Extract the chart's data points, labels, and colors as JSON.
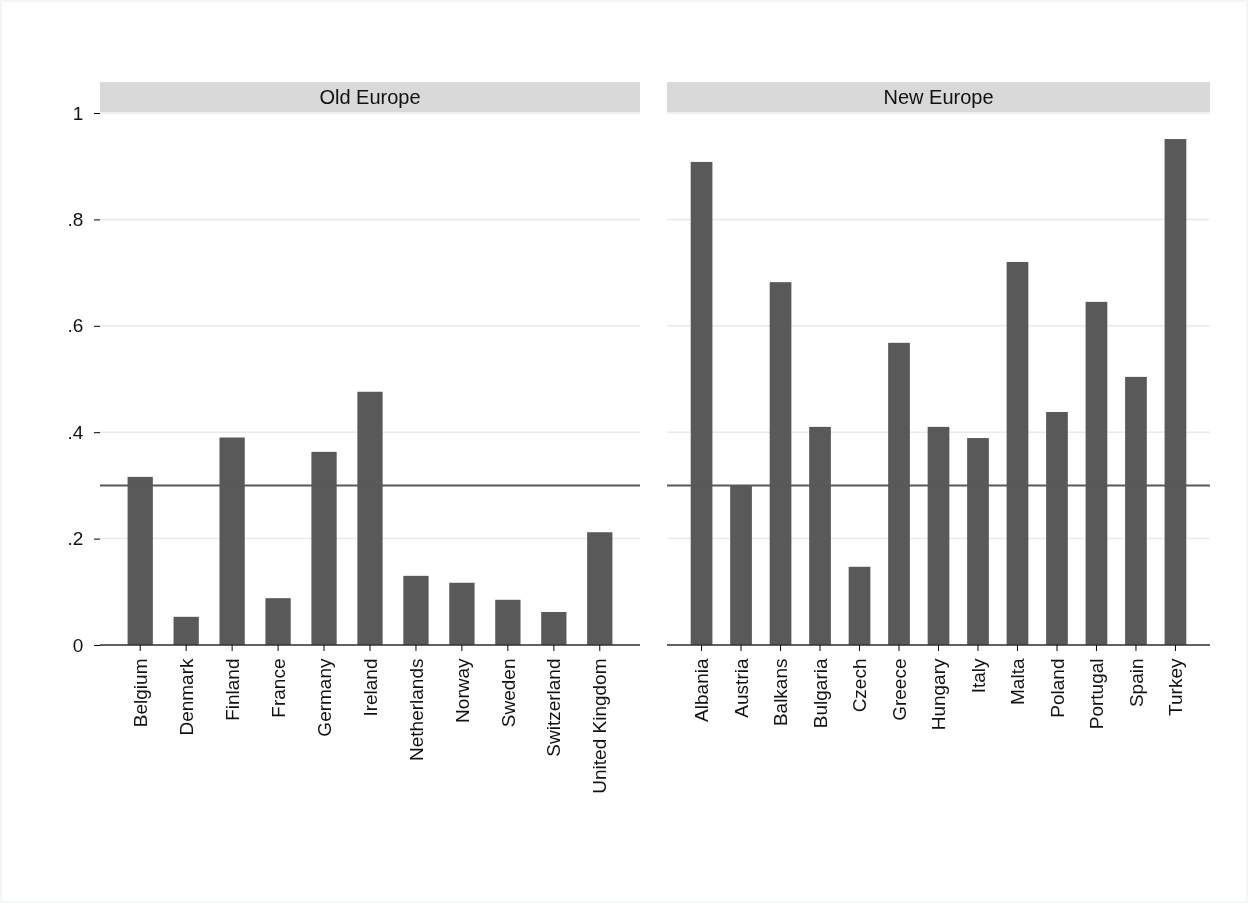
{
  "chart_data": [
    {
      "type": "bar",
      "title": "Old Europe",
      "categories": [
        "Belgium",
        "Denmark",
        "Finland",
        "France",
        "Germany",
        "Ireland",
        "Netherlands",
        "Norway",
        "Sweden",
        "Switzerland",
        "United Kingdom"
      ],
      "color": "#595959",
      "values": [
        0.316,
        0.053,
        0.39,
        0.088,
        0.363,
        0.476,
        0.13,
        0.117,
        0.085,
        0.062,
        0.212
      ],
      "ylim": [
        0,
        1
      ],
      "yticks": [
        {
          "value": 0,
          "label": "0"
        },
        {
          "value": 0.2,
          "label": ".2"
        },
        {
          "value": 0.4,
          "label": ".4"
        },
        {
          "value": 0.6,
          "label": ".6"
        },
        {
          "value": 0.8,
          "label": ".8"
        },
        {
          "value": 1,
          "label": "1"
        }
      ],
      "grid": "y",
      "ref_lines": [
        {
          "axis": "y",
          "value": 0.3,
          "color": "#595959"
        }
      ]
    },
    {
      "type": "bar",
      "title": "New Europe",
      "categories": [
        "Albania",
        "Austria",
        "Balkans",
        "Bulgaria",
        "Czech",
        "Greece",
        "Hungary",
        "Italy",
        "Malta",
        "Poland",
        "Portugal",
        "Spain",
        "Turkey"
      ],
      "color": "#595959",
      "values": [
        0.908,
        0.3,
        0.682,
        0.41,
        0.147,
        0.568,
        0.41,
        0.389,
        0.72,
        0.438,
        0.645,
        0.504,
        0.951
      ],
      "ylim": [
        0,
        1
      ],
      "yticks": [
        {
          "value": 0,
          "label": null
        },
        {
          "value": 0.2,
          "label": null
        },
        {
          "value": 0.4,
          "label": null
        },
        {
          "value": 0.6,
          "label": null
        },
        {
          "value": 0.8,
          "label": null
        },
        {
          "value": 1,
          "label": null
        }
      ],
      "grid": "y",
      "tick_labels": "x",
      "ref_lines": [
        {
          "axis": "y",
          "value": 0.3,
          "color": "#595959"
        }
      ]
    }
  ]
}
